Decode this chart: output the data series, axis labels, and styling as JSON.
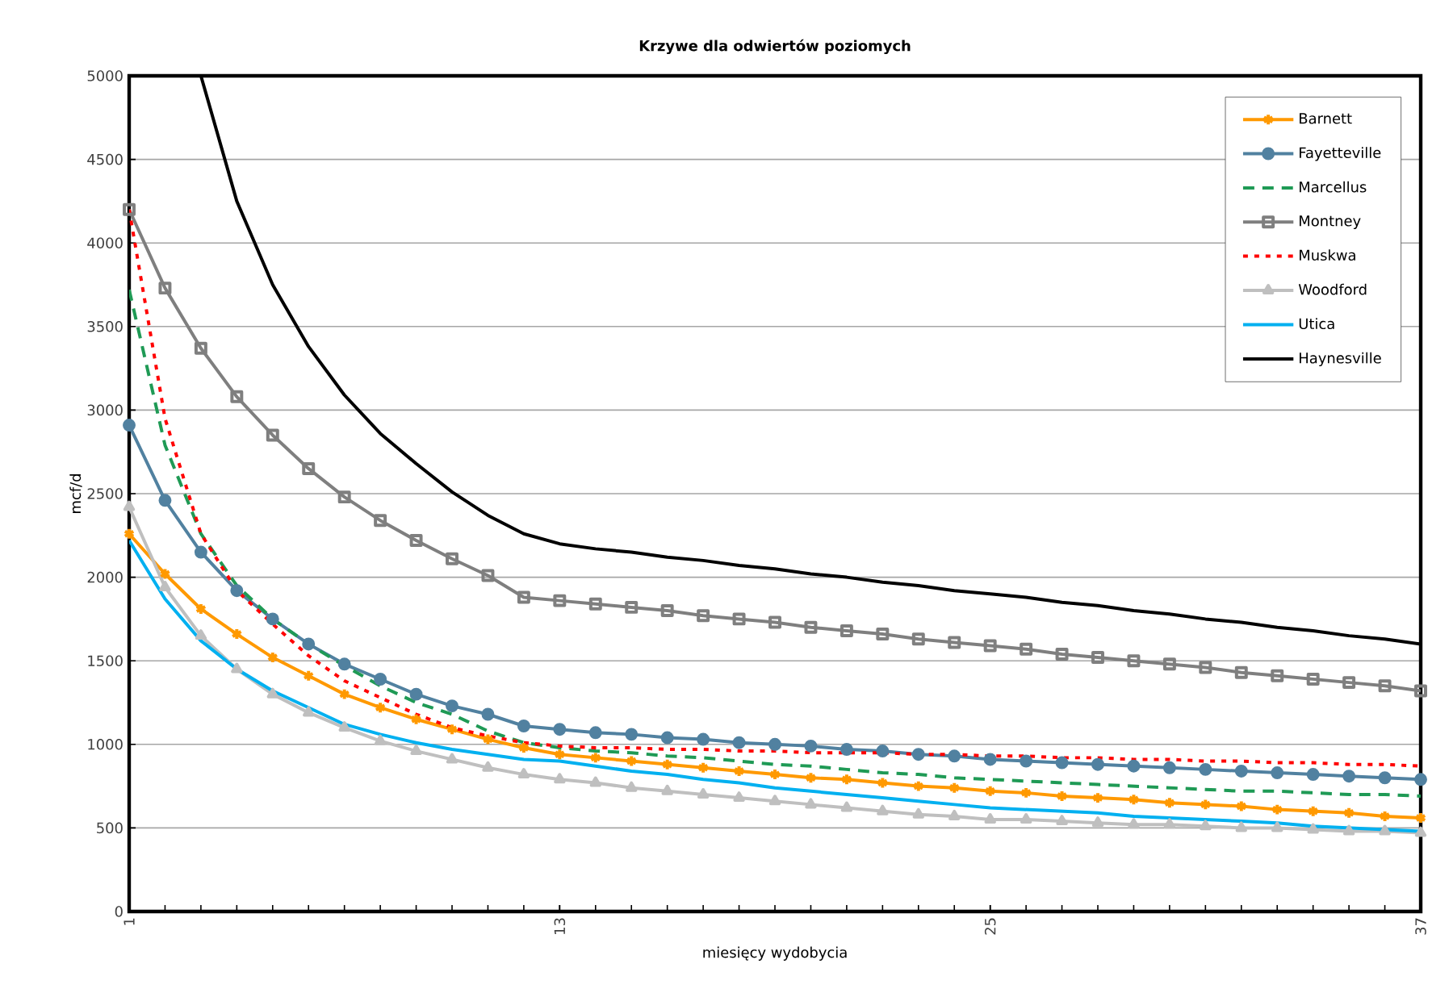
{
  "chart_data": {
    "type": "line",
    "title": "Krzywe dla odwiertów poziomych",
    "xlabel": "miesięcy wydobycia",
    "ylabel": "mcf/d",
    "x": [
      1,
      2,
      3,
      4,
      5,
      6,
      7,
      8,
      9,
      10,
      11,
      12,
      13,
      14,
      15,
      16,
      17,
      18,
      19,
      20,
      21,
      22,
      23,
      24,
      25,
      26,
      27,
      28,
      29,
      30,
      31,
      32,
      33,
      34,
      35,
      36,
      37
    ],
    "xlim": [
      1,
      37
    ],
    "xticks": [
      1,
      13,
      25,
      37
    ],
    "ylim": [
      0,
      5000
    ],
    "yticks": [
      0,
      500,
      1000,
      1500,
      2000,
      2500,
      3000,
      3500,
      4000,
      4500,
      5000
    ],
    "grid": "y",
    "legend": "top right",
    "series": [
      {
        "name": "Barnett",
        "color": "#ff9900",
        "marker": "cross",
        "line_style": "solid",
        "values": [
          2260,
          2020,
          1810,
          1660,
          1520,
          1410,
          1300,
          1220,
          1150,
          1090,
          1030,
          980,
          940,
          920,
          900,
          880,
          860,
          840,
          820,
          800,
          790,
          770,
          750,
          740,
          720,
          710,
          690,
          680,
          670,
          650,
          640,
          630,
          610,
          600,
          590,
          570,
          560
        ]
      },
      {
        "name": "Fayetteville",
        "color": "#5181a0",
        "marker": "circle",
        "line_style": "solid",
        "values": [
          2910,
          2460,
          2150,
          1920,
          1750,
          1600,
          1480,
          1390,
          1300,
          1230,
          1180,
          1110,
          1090,
          1070,
          1060,
          1040,
          1030,
          1010,
          1000,
          990,
          970,
          960,
          940,
          930,
          910,
          900,
          890,
          880,
          870,
          860,
          850,
          840,
          830,
          820,
          810,
          800,
          790
        ]
      },
      {
        "name": "Marcellus",
        "color": "#1f9a55",
        "marker": "none",
        "line_style": "dashed",
        "values": [
          3720,
          2790,
          2260,
          1950,
          1750,
          1600,
          1470,
          1350,
          1250,
          1180,
          1080,
          1010,
          980,
          960,
          950,
          930,
          920,
          900,
          880,
          870,
          850,
          830,
          820,
          800,
          790,
          780,
          770,
          760,
          750,
          740,
          730,
          720,
          720,
          710,
          700,
          700,
          690
        ]
      },
      {
        "name": "Montney",
        "color": "#7f7f7f",
        "marker": "square",
        "line_style": "solid",
        "values": [
          4200,
          3730,
          3370,
          3080,
          2850,
          2650,
          2480,
          2340,
          2220,
          2110,
          2010,
          1880,
          1860,
          1840,
          1820,
          1800,
          1770,
          1750,
          1730,
          1700,
          1680,
          1660,
          1630,
          1610,
          1590,
          1570,
          1540,
          1520,
          1500,
          1480,
          1460,
          1430,
          1410,
          1390,
          1370,
          1350,
          1320
        ]
      },
      {
        "name": "Muskwa",
        "color": "#ff0000",
        "marker": "none",
        "line_style": "dotted",
        "values": [
          4200,
          2950,
          2260,
          1920,
          1720,
          1530,
          1380,
          1280,
          1180,
          1100,
          1050,
          1010,
          990,
          980,
          980,
          970,
          970,
          960,
          960,
          950,
          950,
          950,
          940,
          940,
          930,
          930,
          920,
          920,
          910,
          910,
          900,
          900,
          890,
          890,
          880,
          880,
          870
        ]
      },
      {
        "name": "Woodford",
        "color": "#bfbfbf",
        "marker": "triangle",
        "line_style": "solid",
        "values": [
          2420,
          1940,
          1650,
          1450,
          1300,
          1190,
          1100,
          1020,
          960,
          910,
          860,
          820,
          790,
          770,
          740,
          720,
          700,
          680,
          660,
          640,
          620,
          600,
          580,
          570,
          550,
          550,
          540,
          530,
          520,
          520,
          510,
          500,
          500,
          490,
          480,
          480,
          470
        ]
      },
      {
        "name": "Utica",
        "color": "#00b0f0",
        "marker": "none",
        "line_style": "solid",
        "values": [
          2220,
          1870,
          1620,
          1450,
          1320,
          1220,
          1120,
          1060,
          1010,
          970,
          940,
          910,
          900,
          870,
          840,
          820,
          790,
          770,
          740,
          720,
          700,
          680,
          660,
          640,
          620,
          610,
          600,
          590,
          570,
          560,
          550,
          540,
          530,
          510,
          500,
          490,
          480
        ]
      },
      {
        "name": "Haynesville",
        "color": "#000000",
        "marker": "none",
        "line_style": "solid",
        "values": [
          null,
          null,
          5000,
          4250,
          3750,
          3380,
          3090,
          2860,
          2680,
          2510,
          2370,
          2260,
          2200,
          2170,
          2150,
          2120,
          2100,
          2070,
          2050,
          2020,
          2000,
          1970,
          1950,
          1920,
          1900,
          1880,
          1850,
          1830,
          1800,
          1780,
          1750,
          1730,
          1700,
          1680,
          1650,
          1630,
          1600
        ]
      }
    ]
  }
}
